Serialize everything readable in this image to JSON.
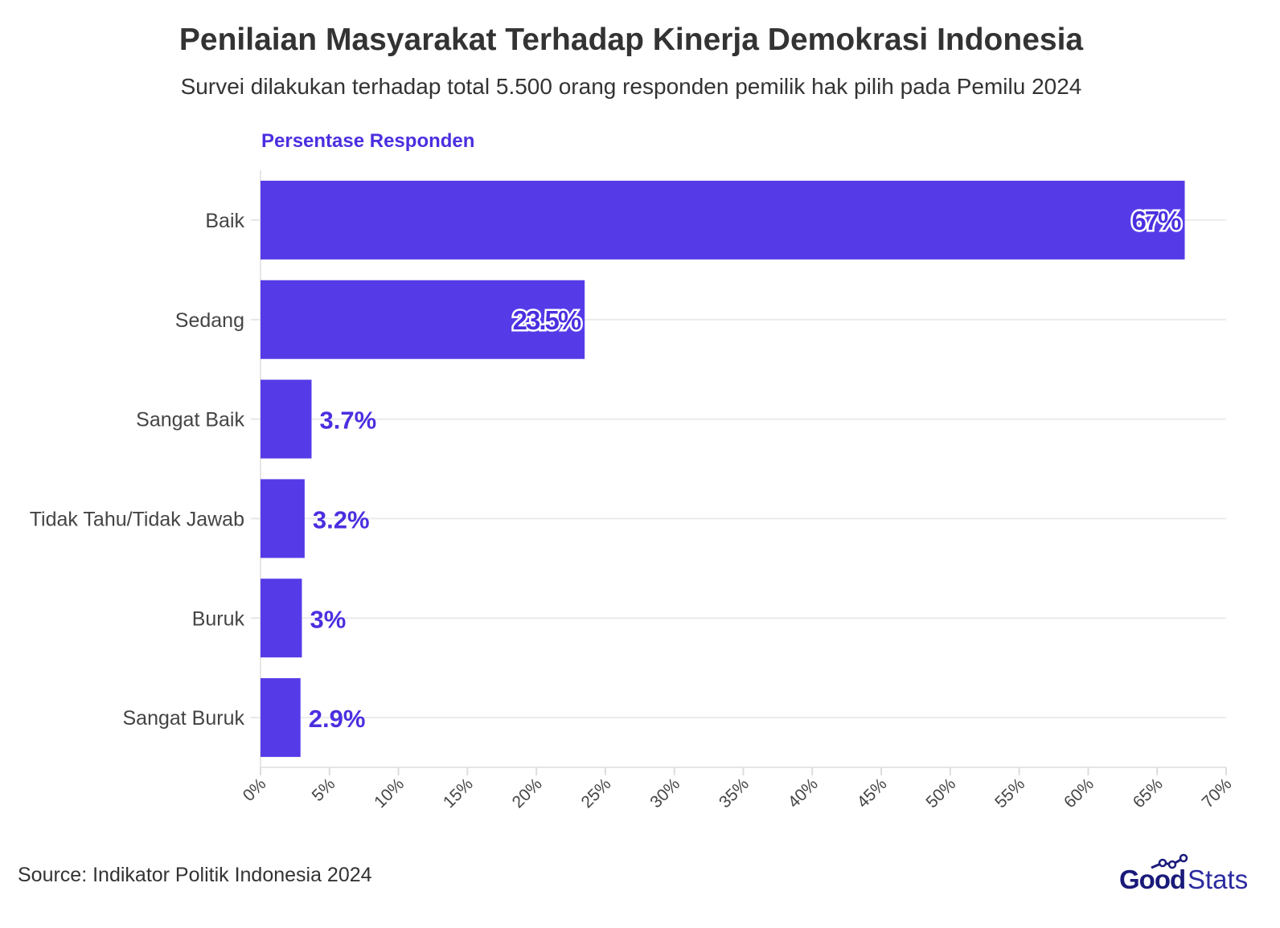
{
  "chart_data": {
    "type": "bar",
    "orientation": "horizontal",
    "title": "Penilaian Masyarakat Terhadap Kinerja Demokrasi Indonesia",
    "subtitle": "Survei dilakukan terhadap total 5.500 orang responden pemilik hak pilih pada Pemilu 2024",
    "xlabel": "Persentase Responden",
    "ylabel": "",
    "categories": [
      "Baik",
      "Sedang",
      "Sangat Baik",
      "Tidak Tahu/Tidak Jawab",
      "Buruk",
      "Sangat Buruk"
    ],
    "values": [
      67,
      23.5,
      3.7,
      3.2,
      3,
      2.9
    ],
    "value_labels": [
      "67%",
      "23.5%",
      "3.7%",
      "3.2%",
      "3%",
      "2.9%"
    ],
    "xlim": [
      0,
      70
    ],
    "xticks": [
      0,
      5,
      10,
      15,
      20,
      25,
      30,
      35,
      40,
      45,
      50,
      55,
      60,
      65,
      70
    ],
    "xtick_labels": [
      "0%",
      "5%",
      "10%",
      "15%",
      "20%",
      "25%",
      "30%",
      "35%",
      "40%",
      "45%",
      "50%",
      "55%",
      "60%",
      "65%",
      "70%"
    ],
    "grid": true,
    "colors": {
      "bar": "#553BE8",
      "label": "#4A2FE0"
    }
  },
  "footer": {
    "source": "Source: Indikator Politik Indonesia 2024",
    "logo_text": "GoodStats"
  }
}
